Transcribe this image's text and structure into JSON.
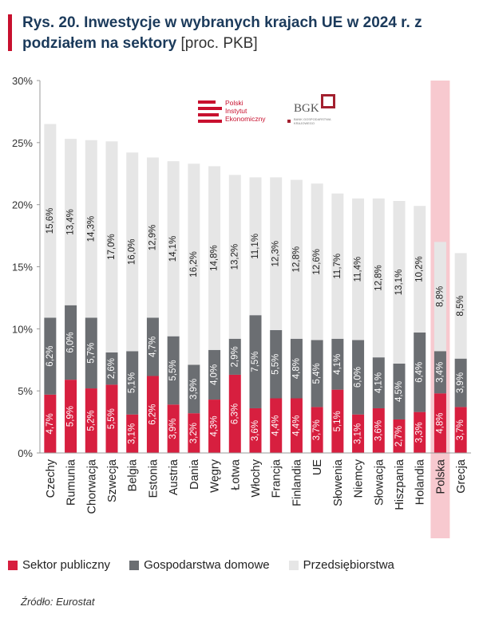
{
  "header": {
    "title_bold": "Rys. 20. Inwestycje w wybranych krajach UE w 2024 r. z podziałem na sektory",
    "title_unit": "[proc. PKB]"
  },
  "logos": {
    "pie_text": [
      "Polski",
      "Instytut",
      "Ekonomiczny"
    ],
    "bgk_text": "BGK",
    "bgk_sub": "BANK GOSPODARSTWA KRAJOWEGO"
  },
  "colors": {
    "public": "#d71f3f",
    "households": "#6b6e72",
    "enterprises": "#e6e6e6",
    "highlight": "#f7c9cf"
  },
  "legend": {
    "public": "Sektor publiczny",
    "households": "Gospodarstwa domowe",
    "enterprises": "Przedsiębiorstwa"
  },
  "source": "Źródło: Eurostat",
  "chart_data": {
    "type": "bar",
    "stacked": true,
    "categories": [
      "Czechy",
      "Rumunia",
      "Chorwacja",
      "Szwecja",
      "Belgia",
      "Estonia",
      "Austria",
      "Dania",
      "Węgry",
      "Łotwa",
      "Włochy",
      "Francja",
      "Finlandia",
      "UE",
      "Słowenia",
      "Niemcy",
      "Słowacja",
      "Hiszpania",
      "Holandia",
      "Polska",
      "Grecja"
    ],
    "highlight_category": "Polska",
    "series": [
      {
        "name": "Sektor publiczny",
        "values": [
          4.7,
          5.9,
          5.2,
          5.5,
          3.1,
          6.2,
          3.9,
          3.2,
          4.3,
          6.3,
          3.6,
          4.4,
          4.4,
          3.7,
          5.1,
          3.1,
          3.6,
          2.7,
          3.3,
          4.8,
          3.7
        ],
        "labels": [
          "4,7%",
          "5,9%",
          "5,2%",
          "5,5%",
          "3,1%",
          "6,2%",
          "3,9%",
          "3,2%",
          "4,3%",
          "6,3%",
          "3,6%",
          "4,4%",
          "4,4%",
          "3,7%",
          "5,1%",
          "3,1%",
          "3,6%",
          "2,7%",
          "3,3%",
          "4,8%",
          "3,7%"
        ]
      },
      {
        "name": "Gospodarstwa domowe",
        "values": [
          6.2,
          6.0,
          5.7,
          2.6,
          5.1,
          4.7,
          5.5,
          3.9,
          4.0,
          2.9,
          7.5,
          5.5,
          4.8,
          5.4,
          4.1,
          6.0,
          4.1,
          4.5,
          6.4,
          3.4,
          3.9
        ],
        "labels": [
          "6,2%",
          "6,0%",
          "5,7%",
          "2,6%",
          "5,1%",
          "4,7%",
          "5,5%",
          "3,9%",
          "4,0%",
          "2,9%",
          "7,5%",
          "5,5%",
          "4,8%",
          "5,4%",
          "4,1%",
          "6,0%",
          "4,1%",
          "4,5%",
          "6,4%",
          "3,4%",
          "3,9%"
        ]
      },
      {
        "name": "Przedsiębiorstwa",
        "values": [
          15.6,
          13.4,
          14.3,
          17.0,
          16.0,
          12.9,
          14.1,
          16.2,
          14.8,
          13.2,
          11.1,
          12.3,
          12.8,
          12.6,
          11.7,
          11.4,
          12.8,
          13.1,
          10.2,
          8.8,
          8.5
        ],
        "labels": [
          "15,6%",
          "13,4%",
          "14,3%",
          "17,0%",
          "16,0%",
          "12,9%",
          "14,1%",
          "16,2%",
          "14,8%",
          "13,2%",
          "11,1%",
          "12,3%",
          "12,8%",
          "12,6%",
          "11,7%",
          "11,4%",
          "12,8%",
          "13,1%",
          "10,2%",
          "8,8%",
          "8,5%"
        ]
      }
    ],
    "ylim": [
      0,
      30
    ],
    "yticks": [
      0,
      5,
      10,
      15,
      20,
      25,
      30
    ],
    "ytick_labels": [
      "0%",
      "5%",
      "10%",
      "15%",
      "20%",
      "25%",
      "30%"
    ],
    "grid": false,
    "legend_position": "bottom"
  }
}
